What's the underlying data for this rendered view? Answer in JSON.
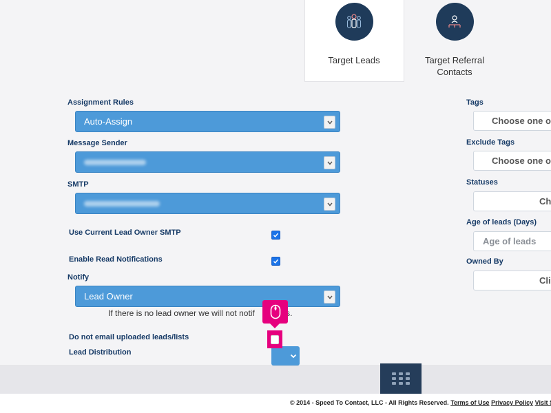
{
  "tabs": [
    {
      "label": "Target Leads",
      "active": true,
      "icon": "target-leads-icon"
    },
    {
      "label": "Target Referral Contacts",
      "line1": "Target Referral",
      "line2": "Contacts",
      "active": false,
      "icon": "referral-contacts-icon"
    }
  ],
  "form": {
    "assignment_rules": {
      "label": "Assignment Rules",
      "value": "Auto-Assign"
    },
    "message_sender": {
      "label": "Message Sender",
      "value": ""
    },
    "smtp": {
      "label": "SMTP",
      "value": ""
    },
    "use_current_owner_smtp": {
      "label": "Use Current Lead Owner SMTP",
      "checked": true
    },
    "enable_read_notifications": {
      "label": "Enable Read Notifications",
      "checked": true
    },
    "notify": {
      "label": "Notify",
      "value": "Lead Owner",
      "note": "If there is no lead owner we will not notify users.",
      "note_visible_left": "If there is no lead owner we will not notif",
      "note_visible_right": "users."
    },
    "do_not_email": {
      "label": "Do not email uploaded leads/lists",
      "checked": false
    },
    "lead_distribution": {
      "label": "Lead Distribution"
    }
  },
  "filters": {
    "tags": {
      "label": "Tags",
      "placeholder": "Choose one or"
    },
    "exclude_tags": {
      "label": "Exclude Tags",
      "placeholder": "Choose one or"
    },
    "statuses": {
      "label": "Statuses",
      "placeholder": "Ch"
    },
    "age_of_leads": {
      "label": "Age of leads (Days)",
      "placeholder": "Age of leads"
    },
    "owned_by": {
      "label": "Owned By",
      "placeholder": "Cli"
    }
  },
  "footer": {
    "copyright": "© 2014 - Speed To Contact, LLC - All Rights Reserved.",
    "terms": "Terms of Use",
    "privacy": "Privacy Policy",
    "visit": "Visit Si"
  },
  "colors": {
    "accent": "#4d9ad9",
    "navy": "#1f3b5a",
    "marker": "#e6007e"
  }
}
